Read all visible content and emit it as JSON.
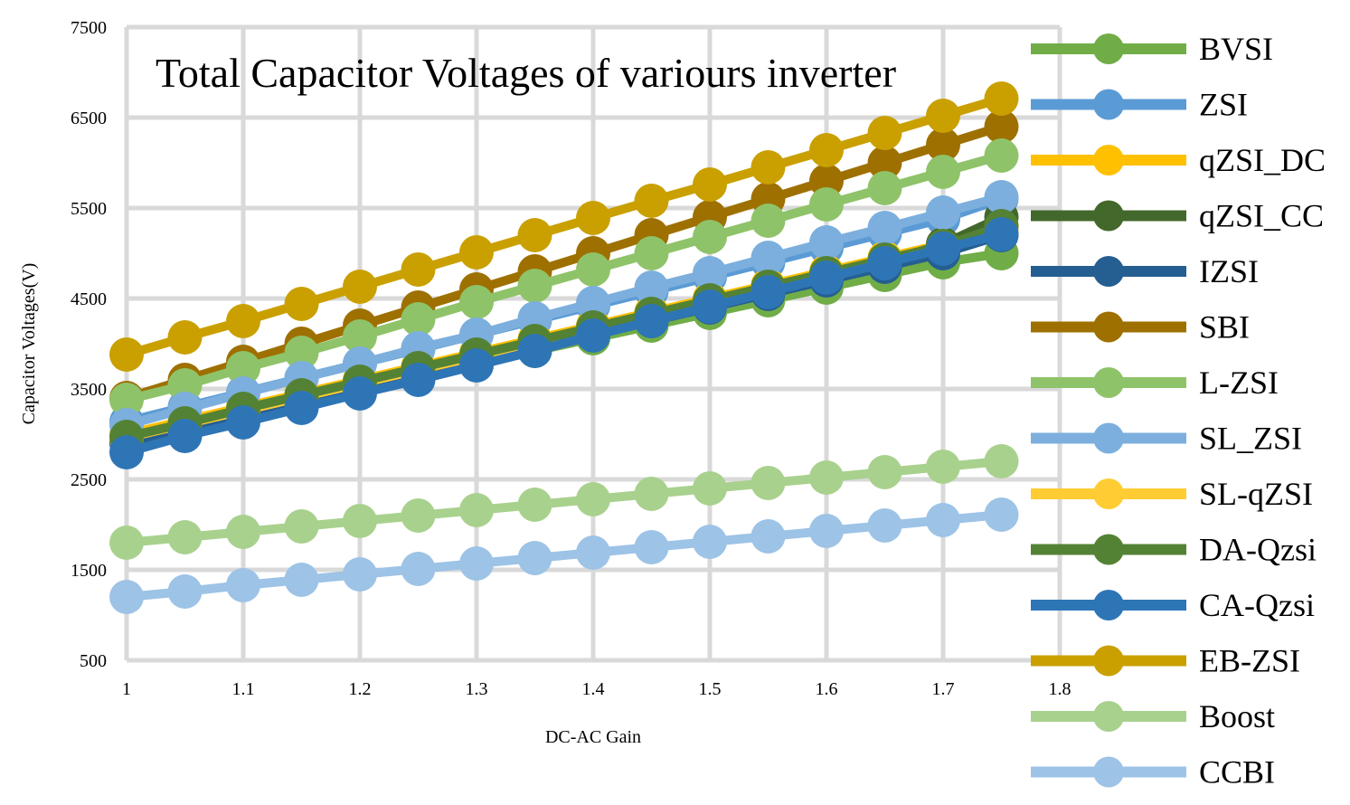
{
  "chart_data": {
    "type": "line",
    "title": "Total Capacitor Voltages of variours inverter",
    "xlabel": "DC-AC Gain",
    "ylabel": "Capacitor Voltages(V)",
    "xlim": [
      1,
      1.8
    ],
    "ylim": [
      500,
      7500
    ],
    "x_ticks": [
      "1",
      "1.1",
      "1.2",
      "1.3",
      "1.4",
      "1.5",
      "1.6",
      "1.7",
      "1.8"
    ],
    "y_ticks": [
      "500",
      "1500",
      "2500",
      "3500",
      "4500",
      "5500",
      "6500",
      "7500"
    ],
    "grid": true,
    "legend_position": "right",
    "x": [
      1,
      1.05,
      1.1,
      1.15,
      1.2,
      1.25,
      1.3,
      1.35,
      1.4,
      1.45,
      1.5,
      1.55,
      1.6,
      1.65,
      1.7,
      1.75
    ],
    "series": [
      {
        "name": "BVSI",
        "color": "#70AD47",
        "values": [
          2940,
          3080,
          3220,
          3360,
          3500,
          3640,
          3780,
          3920,
          4060,
          4200,
          4340,
          4480,
          4620,
          4760,
          4900,
          5000
        ]
      },
      {
        "name": "ZSI",
        "color": "#5B9BD5",
        "values": [
          3140,
          3300,
          3460,
          3620,
          3780,
          3940,
          4100,
          4260,
          4420,
          4580,
          4740,
          4900,
          5060,
          5220,
          5380,
          5600
        ]
      },
      {
        "name": "qZSI_DC",
        "color": "#FFC000",
        "values": [
          3000,
          3150,
          3300,
          3450,
          3600,
          3750,
          3900,
          4050,
          4200,
          4350,
          4500,
          4650,
          4800,
          4950,
          5100,
          5300
        ]
      },
      {
        "name": "qZSI_CC",
        "color": "#43682B",
        "values": [
          2950,
          3100,
          3250,
          3400,
          3550,
          3700,
          3850,
          4000,
          4150,
          4300,
          4450,
          4600,
          4750,
          4900,
          5100,
          5400
        ]
      },
      {
        "name": "IZSI",
        "color": "#255E91",
        "values": [
          2900,
          3050,
          3200,
          3350,
          3500,
          3650,
          3800,
          3950,
          4100,
          4250,
          4400,
          4550,
          4700,
          4850,
          5000,
          5200
        ]
      },
      {
        "name": "SBI",
        "color": "#9E7000",
        "values": [
          3400,
          3600,
          3800,
          4000,
          4200,
          4400,
          4600,
          4800,
          5000,
          5200,
          5400,
          5600,
          5800,
          6000,
          6200,
          6400
        ]
      },
      {
        "name": "L-ZSI",
        "color": "#8FC369",
        "values": [
          3380,
          3540,
          3730,
          3900,
          4080,
          4270,
          4460,
          4640,
          4820,
          5000,
          5180,
          5360,
          5540,
          5720,
          5900,
          6080
        ]
      },
      {
        "name": "SL_ZSI",
        "color": "#7CAFDD",
        "values": [
          3100,
          3280,
          3450,
          3620,
          3780,
          3950,
          4100,
          4280,
          4450,
          4620,
          4780,
          4950,
          5120,
          5280,
          5450,
          5620
        ]
      },
      {
        "name": "SL-qZSI",
        "color": "#FFCD33",
        "values": [
          2960,
          3110,
          3260,
          3410,
          3560,
          3710,
          3860,
          4010,
          4160,
          4310,
          4460,
          4610,
          4760,
          4910,
          5060,
          5250
        ]
      },
      {
        "name": "DA-Qzsi",
        "color": "#548235",
        "values": [
          2970,
          3120,
          3280,
          3430,
          3580,
          3730,
          3880,
          4030,
          4180,
          4330,
          4480,
          4630,
          4780,
          4930,
          5080,
          5300
        ]
      },
      {
        "name": "CA-Qzsi",
        "color": "#2E75B6",
        "values": [
          2800,
          2980,
          3130,
          3290,
          3450,
          3600,
          3760,
          3920,
          4090,
          4250,
          4410,
          4570,
          4730,
          4890,
          5050,
          5210
        ]
      },
      {
        "name": "EB-ZSI",
        "color": "#C9A000",
        "values": [
          3880,
          4070,
          4250,
          4440,
          4630,
          4820,
          5010,
          5200,
          5390,
          5580,
          5760,
          5950,
          6140,
          6330,
          6520,
          6710
        ]
      },
      {
        "name": "Boost",
        "color": "#A9D18E",
        "values": [
          1800,
          1860,
          1920,
          1980,
          2040,
          2100,
          2160,
          2220,
          2280,
          2340,
          2400,
          2460,
          2520,
          2580,
          2640,
          2700
        ]
      },
      {
        "name": "CCBI",
        "color": "#9DC3E6",
        "values": [
          1200,
          1260,
          1330,
          1390,
          1450,
          1510,
          1570,
          1630,
          1690,
          1750,
          1810,
          1870,
          1930,
          1990,
          2050,
          2110
        ]
      }
    ]
  }
}
